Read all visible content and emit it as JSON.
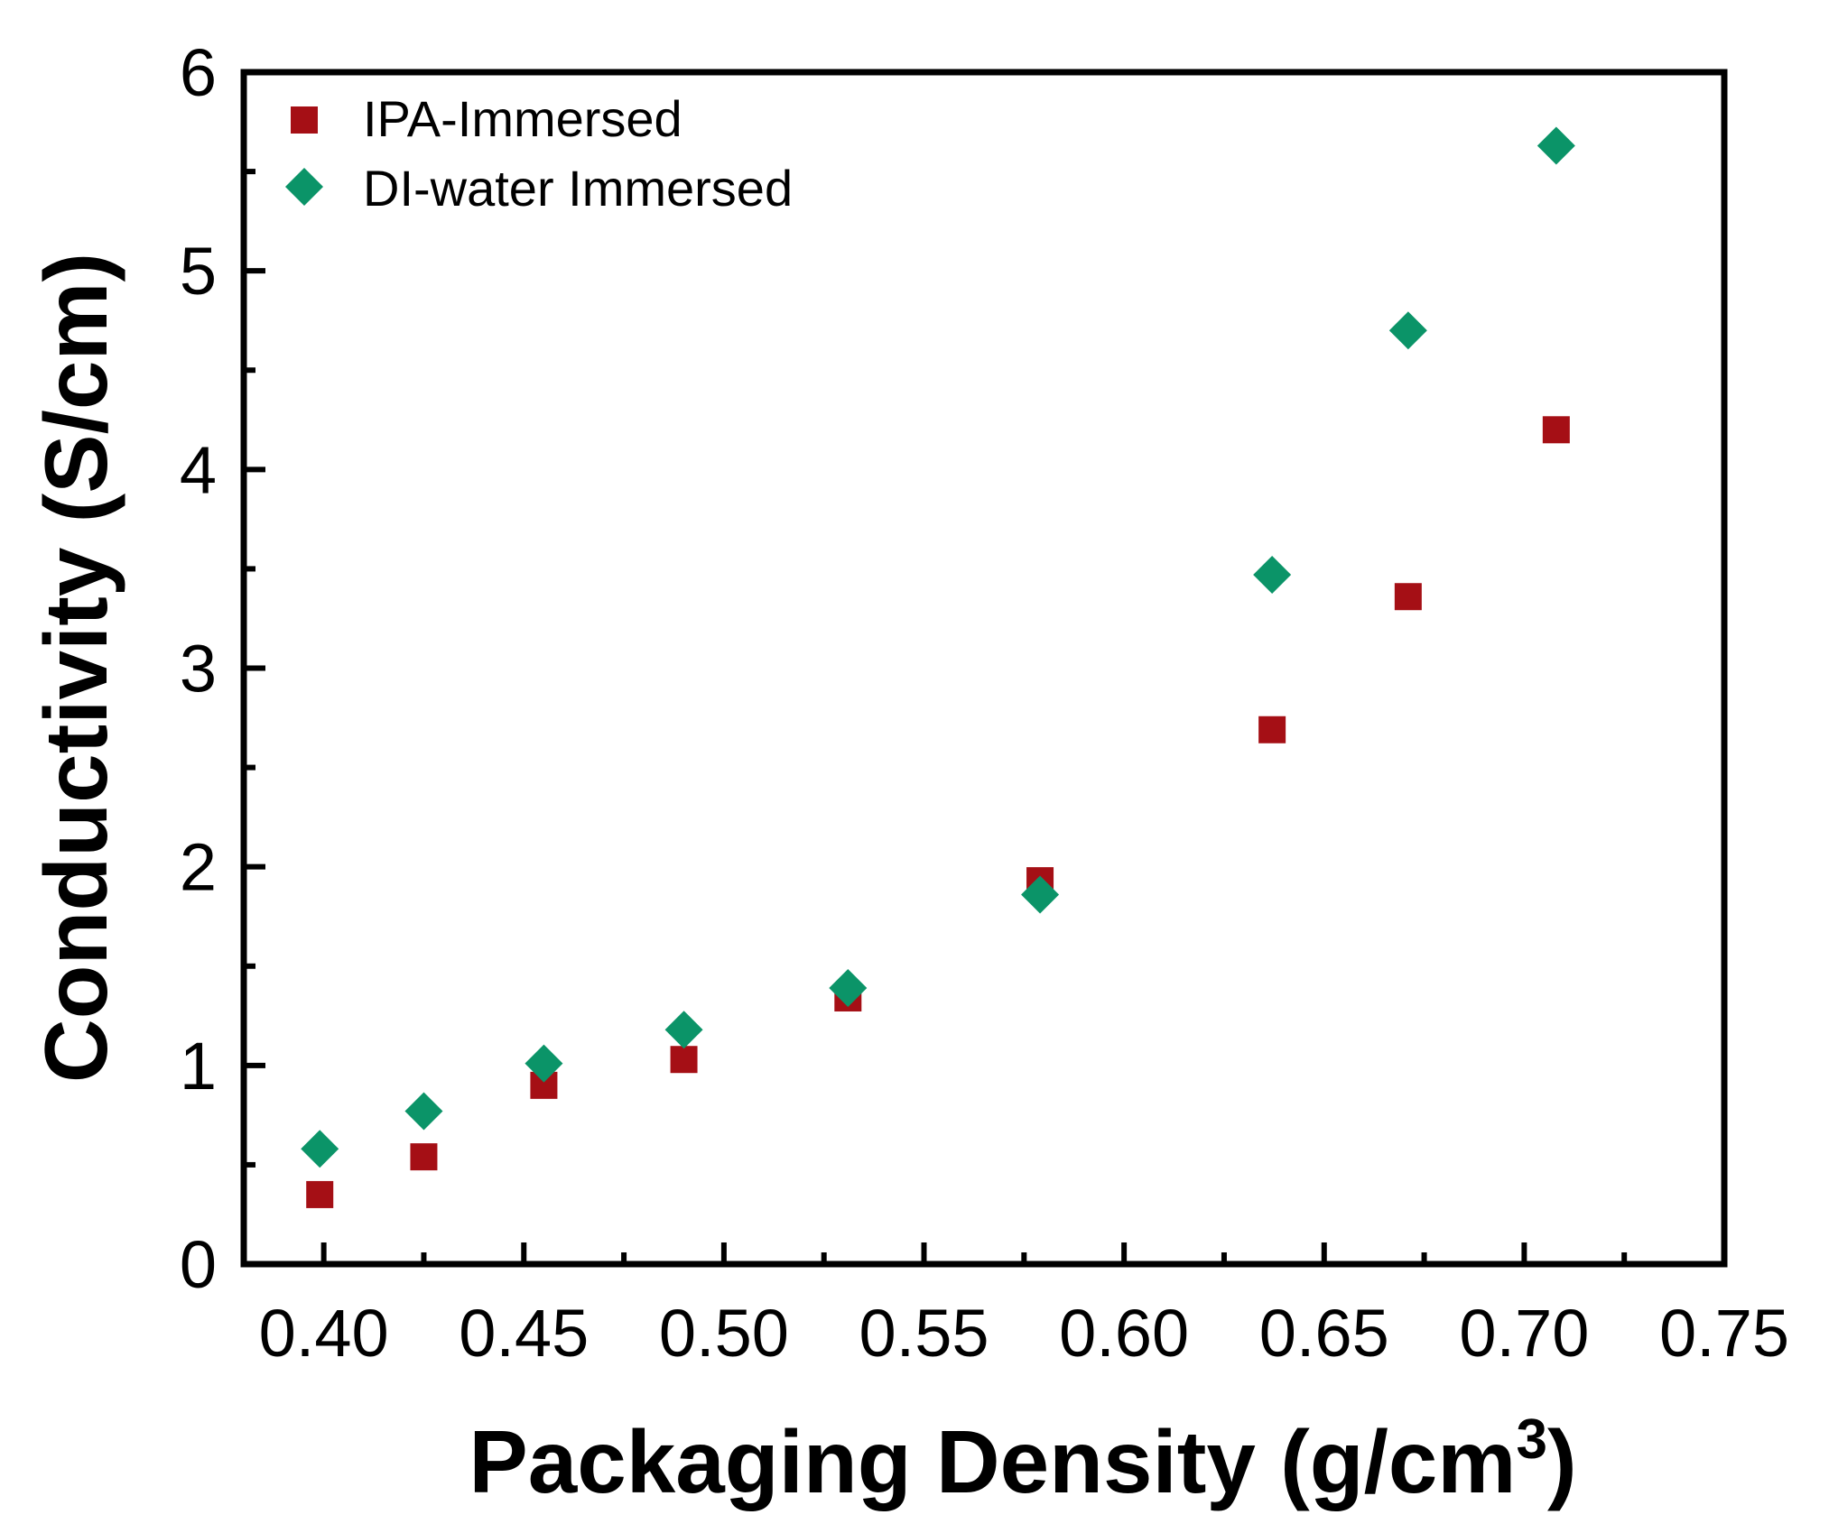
{
  "chart_data": {
    "type": "scatter",
    "title": "",
    "xlabel": "Packaging Density (g/cm",
    "xlabel_superscript": "3",
    "xlabel_close": ")",
    "ylabel": "Conductivity (S/cm)",
    "xlim": [
      0.38,
      0.75
    ],
    "ylim": [
      0,
      6
    ],
    "x_ticks": [
      "0.40",
      "0.45",
      "0.50",
      "0.55",
      "0.60",
      "0.65",
      "0.70",
      "0.75"
    ],
    "y_ticks": [
      "0",
      "1",
      "2",
      "3",
      "4",
      "5",
      "6"
    ],
    "legend_position": "top-left",
    "series": [
      {
        "name": "IPA-Immersed",
        "marker": "square",
        "color": "#a50f15",
        "x": [
          0.399,
          0.425,
          0.455,
          0.49,
          0.531,
          0.579,
          0.637,
          0.671,
          0.708
        ],
        "y": [
          0.35,
          0.54,
          0.9,
          1.03,
          1.34,
          1.93,
          2.69,
          3.36,
          4.2
        ]
      },
      {
        "name": "DI-water Immersed",
        "marker": "diamond",
        "color": "#0b9468",
        "x": [
          0.399,
          0.425,
          0.455,
          0.49,
          0.531,
          0.579,
          0.637,
          0.671,
          0.708
        ],
        "y": [
          0.58,
          0.77,
          1.01,
          1.18,
          1.39,
          1.86,
          3.47,
          4.7,
          5.63
        ]
      }
    ]
  }
}
